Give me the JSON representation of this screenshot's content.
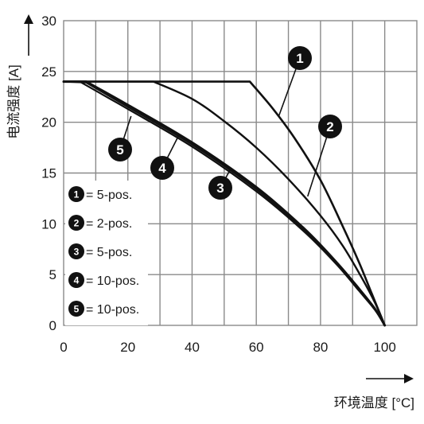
{
  "chart_data": {
    "type": "line",
    "xlabel": "环境温度 [°C]",
    "ylabel": "电流强度 [A]",
    "xlim": [
      0,
      110
    ],
    "ylim": [
      0,
      30
    ],
    "x_ticks": [
      "0",
      "20",
      "40",
      "60",
      "80",
      "100"
    ],
    "y_ticks": [
      "0",
      "5",
      "10",
      "15",
      "20",
      "25",
      "30"
    ],
    "grid": true,
    "legend_position": "bottom-left",
    "series": [
      {
        "marker": "1",
        "name": "= 5-pos.",
        "points": [
          [
            0,
            24
          ],
          [
            58,
            24
          ],
          [
            65,
            21.4
          ],
          [
            72,
            18.4
          ],
          [
            80,
            14.3
          ],
          [
            87,
            9.7
          ],
          [
            92,
            6.2
          ],
          [
            96,
            3.1
          ],
          [
            100,
            0
          ]
        ]
      },
      {
        "marker": "2",
        "name": "= 2-pos.",
        "points": [
          [
            0,
            24
          ],
          [
            28,
            24
          ],
          [
            40,
            22.3
          ],
          [
            50,
            20.1
          ],
          [
            60,
            17.5
          ],
          [
            70,
            14.4
          ],
          [
            80,
            10.8
          ],
          [
            87,
            7.8
          ],
          [
            93,
            4.6
          ],
          [
            97,
            2.2
          ],
          [
            100,
            0
          ]
        ]
      },
      {
        "marker": "3",
        "name": "= 5-pos.",
        "points": [
          [
            0,
            24
          ],
          [
            7,
            24
          ],
          [
            20,
            21.7
          ],
          [
            40,
            18.0
          ],
          [
            60,
            13.6
          ],
          [
            75,
            9.5
          ],
          [
            85,
            6.2
          ],
          [
            92,
            3.6
          ],
          [
            97,
            1.6
          ],
          [
            100,
            0
          ]
        ]
      },
      {
        "marker": "4",
        "name": "= 10-pos.",
        "points": [
          [
            0,
            24
          ],
          [
            7,
            23.9
          ],
          [
            20,
            21.5
          ],
          [
            40,
            17.8
          ],
          [
            60,
            13.4
          ],
          [
            75,
            9.3
          ],
          [
            85,
            6.1
          ],
          [
            92,
            3.5
          ],
          [
            97,
            1.5
          ],
          [
            100,
            0
          ]
        ]
      },
      {
        "marker": "5",
        "name": "= 10-pos.",
        "points": [
          [
            0,
            24
          ],
          [
            5,
            24
          ],
          [
            20,
            21.3
          ],
          [
            40,
            17.6
          ],
          [
            60,
            13.2
          ],
          [
            75,
            9.2
          ],
          [
            85,
            6.0
          ],
          [
            92,
            3.4
          ],
          [
            97,
            1.5
          ],
          [
            100,
            0
          ]
        ]
      }
    ]
  }
}
